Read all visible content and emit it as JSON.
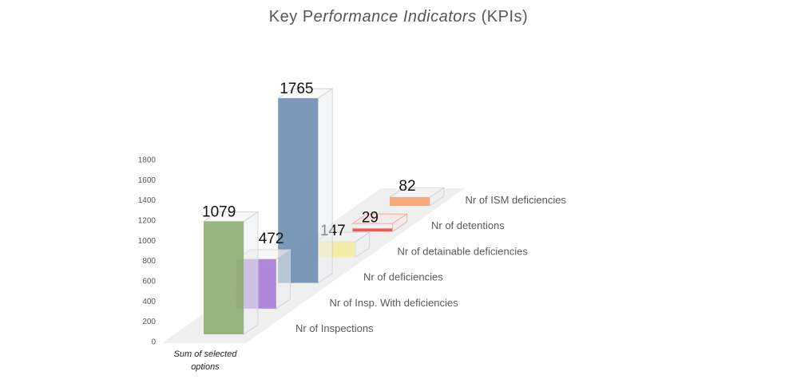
{
  "chart_data": {
    "type": "bar",
    "title": {
      "part1": "Key P",
      "part2": "erformance Indicators",
      "part3": " (KPIs)"
    },
    "categories": [
      "Sum of selected options"
    ],
    "series": [
      {
        "name": "Nr of Inspections",
        "values": [
          1079
        ],
        "color": "#8faf74"
      },
      {
        "name": "Nr of Insp. With deficiencies",
        "values": [
          472
        ],
        "color": "#a87ed6"
      },
      {
        "name": "Nr of deficiencies",
        "values": [
          1765
        ],
        "color": "#6f8fb2"
      },
      {
        "name": "Nr of detainable deficiencies",
        "values": [
          147
        ],
        "color": "#f5ec9a"
      },
      {
        "name": "Nr of detentions",
        "values": [
          29
        ],
        "color": "#ec4a4a"
      },
      {
        "name": "Nr of ISM deficiencies",
        "values": [
          82
        ],
        "color": "#f4a36f"
      }
    ],
    "ylim": [
      0,
      1800
    ],
    "yticks": [
      "0",
      "200",
      "400",
      "600",
      "800",
      "1000",
      "1200",
      "1400",
      "1600",
      "1800"
    ],
    "grid": false
  }
}
